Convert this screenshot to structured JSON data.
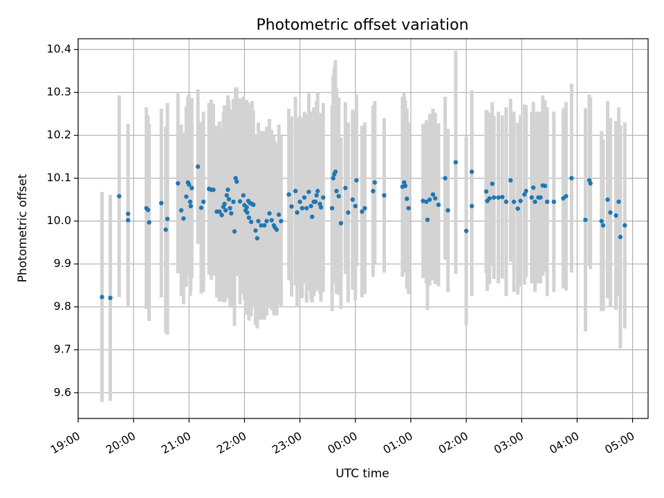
{
  "chart_data": {
    "type": "scatter",
    "title": "Photometric offset variation",
    "xlabel": "UTC time",
    "ylabel": "Photometric offset",
    "x_unit": "hours",
    "xlim": [
      19.0,
      29.28
    ],
    "ylim": [
      9.54,
      10.425
    ],
    "x_ticks": [
      19,
      20,
      21,
      22,
      23,
      24,
      25,
      26,
      27,
      28,
      29
    ],
    "x_tick_labels": [
      "19:00",
      "20:00",
      "21:00",
      "22:00",
      "23:00",
      "00:00",
      "01:00",
      "02:00",
      "03:00",
      "04:00",
      "05:00"
    ],
    "y_ticks": [
      9.6,
      9.7,
      9.8,
      9.9,
      10.0,
      10.1,
      10.2,
      10.3,
      10.4
    ],
    "y_tick_labels": [
      "9.6",
      "9.7",
      "9.8",
      "9.9",
      "10.0",
      "10.1",
      "10.2",
      "10.3",
      "10.4"
    ],
    "grid": true,
    "colors": {
      "point": "#1f77b4",
      "errorbar": "#d3d3d3",
      "grid": "#b0b0b0"
    },
    "points": [
      [
        19.43,
        9.823,
        0.245
      ],
      [
        19.58,
        9.821,
        0.24
      ],
      [
        19.74,
        10.058,
        0.235
      ],
      [
        19.9,
        10.017,
        0.21
      ],
      [
        19.9,
        10.002,
        0.2
      ],
      [
        20.23,
        10.03,
        0.235
      ],
      [
        20.26,
        10.026,
        0.22
      ],
      [
        20.28,
        9.997,
        0.23
      ],
      [
        20.5,
        10.042,
        0.22
      ],
      [
        20.58,
        9.98,
        0.24
      ],
      [
        20.61,
        10.005,
        0.27
      ],
      [
        20.8,
        10.088,
        0.21
      ],
      [
        20.86,
        10.025,
        0.2
      ],
      [
        20.9,
        10.006,
        0.2
      ],
      [
        20.95,
        10.057,
        0.21
      ],
      [
        20.98,
        10.09,
        0.2
      ],
      [
        21.0,
        10.085,
        0.21
      ],
      [
        21.02,
        10.045,
        0.22
      ],
      [
        21.03,
        10.035,
        0.2
      ],
      [
        21.05,
        10.077,
        0.21
      ],
      [
        21.16,
        10.127,
        0.18
      ],
      [
        21.22,
        10.031,
        0.2
      ],
      [
        21.26,
        10.045,
        0.21
      ],
      [
        21.36,
        10.075,
        0.2
      ],
      [
        21.4,
        10.073,
        0.21
      ],
      [
        21.44,
        10.073,
        0.2
      ],
      [
        21.5,
        10.022,
        0.2
      ],
      [
        21.55,
        10.022,
        0.21
      ],
      [
        21.59,
        10.014,
        0.2
      ],
      [
        21.62,
        10.033,
        0.22
      ],
      [
        21.64,
        10.04,
        0.23
      ],
      [
        21.66,
        10.025,
        0.21
      ],
      [
        21.68,
        10.06,
        0.2
      ],
      [
        21.7,
        10.073,
        0.22
      ],
      [
        21.72,
        10.051,
        0.23
      ],
      [
        21.74,
        10.03,
        0.23
      ],
      [
        21.76,
        10.018,
        0.22
      ],
      [
        21.8,
        10.045,
        0.24
      ],
      [
        21.82,
        9.976,
        0.22
      ],
      [
        21.84,
        10.1,
        0.21
      ],
      [
        21.86,
        10.092,
        0.22
      ],
      [
        21.92,
        10.046,
        0.24
      ],
      [
        21.98,
        10.06,
        0.23
      ],
      [
        22.0,
        10.037,
        0.22
      ],
      [
        22.02,
        10.025,
        0.24
      ],
      [
        22.04,
        10.032,
        0.25
      ],
      [
        22.05,
        10.02,
        0.22
      ],
      [
        22.07,
        10.047,
        0.23
      ],
      [
        22.08,
        10.008,
        0.24
      ],
      [
        22.1,
        10.042,
        0.23
      ],
      [
        22.12,
        9.998,
        0.22
      ],
      [
        22.14,
        10.04,
        0.24
      ],
      [
        22.16,
        10.038,
        0.22
      ],
      [
        22.2,
        9.978,
        0.22
      ],
      [
        22.23,
        9.96,
        0.21
      ],
      [
        22.25,
        10.0,
        0.23
      ],
      [
        22.3,
        9.99,
        0.22
      ],
      [
        22.36,
        9.99,
        0.22
      ],
      [
        22.4,
        10.0,
        0.22
      ],
      [
        22.45,
        10.018,
        0.22
      ],
      [
        22.49,
        10.002,
        0.21
      ],
      [
        22.53,
        9.99,
        0.21
      ],
      [
        22.55,
        9.985,
        0.2
      ],
      [
        22.58,
        9.98,
        0.2
      ],
      [
        22.62,
        10.015,
        0.21
      ],
      [
        22.66,
        10.0,
        0.2
      ],
      [
        22.8,
        10.062,
        0.2
      ],
      [
        22.85,
        10.034,
        0.21
      ],
      [
        22.92,
        10.07,
        0.22
      ],
      [
        22.95,
        10.02,
        0.22
      ],
      [
        23.0,
        10.045,
        0.2
      ],
      [
        23.04,
        10.03,
        0.21
      ],
      [
        23.08,
        10.055,
        0.2
      ],
      [
        23.12,
        10.03,
        0.22
      ],
      [
        23.16,
        10.068,
        0.23
      ],
      [
        23.2,
        10.035,
        0.22
      ],
      [
        23.22,
        10.01,
        0.2
      ],
      [
        23.25,
        10.045,
        0.22
      ],
      [
        23.28,
        10.045,
        0.21
      ],
      [
        23.3,
        10.06,
        0.22
      ],
      [
        23.32,
        10.07,
        0.23
      ],
      [
        23.36,
        10.04,
        0.21
      ],
      [
        23.38,
        10.032,
        0.22
      ],
      [
        23.42,
        10.055,
        0.22
      ],
      [
        23.58,
        10.03,
        0.24
      ],
      [
        23.6,
        10.1,
        0.24
      ],
      [
        23.62,
        10.109,
        0.25
      ],
      [
        23.64,
        10.115,
        0.26
      ],
      [
        23.66,
        10.07,
        0.24
      ],
      [
        23.7,
        10.058,
        0.23
      ],
      [
        23.74,
        9.995,
        0.2
      ],
      [
        23.82,
        10.077,
        0.2
      ],
      [
        23.87,
        10.02,
        0.21
      ],
      [
        23.95,
        10.05,
        0.21
      ],
      [
        24.0,
        10.035,
        0.22
      ],
      [
        24.02,
        10.095,
        0.2
      ],
      [
        24.12,
        10.022,
        0.2
      ],
      [
        24.17,
        10.03,
        0.2
      ],
      [
        24.32,
        10.07,
        0.2
      ],
      [
        24.35,
        10.09,
        0.19
      ],
      [
        24.52,
        10.06,
        0.18
      ],
      [
        24.85,
        10.08,
        0.21
      ],
      [
        24.88,
        10.09,
        0.21
      ],
      [
        24.9,
        10.082,
        0.2
      ],
      [
        24.93,
        10.052,
        0.21
      ],
      [
        24.96,
        10.03,
        0.2
      ],
      [
        25.22,
        10.047,
        0.18
      ],
      [
        25.28,
        10.045,
        0.19
      ],
      [
        25.3,
        10.003,
        0.21
      ],
      [
        25.34,
        10.05,
        0.2
      ],
      [
        25.4,
        10.062,
        0.2
      ],
      [
        25.44,
        10.053,
        0.2
      ],
      [
        25.5,
        10.038,
        0.19
      ],
      [
        25.62,
        10.1,
        0.19
      ],
      [
        25.67,
        10.025,
        0.19
      ],
      [
        25.81,
        10.137,
        0.26
      ],
      [
        26.0,
        9.977,
        0.22
      ],
      [
        26.1,
        10.035,
        0.21
      ],
      [
        26.1,
        10.115,
        0.19
      ],
      [
        26.36,
        10.069,
        0.19
      ],
      [
        26.38,
        10.047,
        0.21
      ],
      [
        26.42,
        10.053,
        0.2
      ],
      [
        26.47,
        10.087,
        0.19
      ],
      [
        26.5,
        10.055,
        0.19
      ],
      [
        26.58,
        10.055,
        0.2
      ],
      [
        26.65,
        10.056,
        0.19
      ],
      [
        26.72,
        10.045,
        0.22
      ],
      [
        26.8,
        10.095,
        0.19
      ],
      [
        26.86,
        10.045,
        0.21
      ],
      [
        26.93,
        10.029,
        0.2
      ],
      [
        26.98,
        10.047,
        0.2
      ],
      [
        27.05,
        10.062,
        0.21
      ],
      [
        27.08,
        10.07,
        0.2
      ],
      [
        27.18,
        10.055,
        0.2
      ],
      [
        27.21,
        10.078,
        0.2
      ],
      [
        27.24,
        10.045,
        0.21
      ],
      [
        27.3,
        10.055,
        0.2
      ],
      [
        27.34,
        10.055,
        0.2
      ],
      [
        27.38,
        10.083,
        0.21
      ],
      [
        27.42,
        10.082,
        0.2
      ],
      [
        27.46,
        10.045,
        0.22
      ],
      [
        27.58,
        10.045,
        0.21
      ],
      [
        27.75,
        10.053,
        0.21
      ],
      [
        27.8,
        10.058,
        0.22
      ],
      [
        27.9,
        10.1,
        0.22
      ],
      [
        28.15,
        10.003,
        0.26
      ],
      [
        28.22,
        10.095,
        0.2
      ],
      [
        28.24,
        10.088,
        0.2
      ],
      [
        28.44,
        10.0,
        0.21
      ],
      [
        28.47,
        9.99,
        0.2
      ],
      [
        28.55,
        10.05,
        0.23
      ],
      [
        28.6,
        10.02,
        0.22
      ],
      [
        28.7,
        10.013,
        0.22
      ],
      [
        28.75,
        10.045,
        0.22
      ],
      [
        28.78,
        9.963,
        0.26
      ],
      [
        28.86,
        9.99,
        0.24
      ]
    ]
  }
}
